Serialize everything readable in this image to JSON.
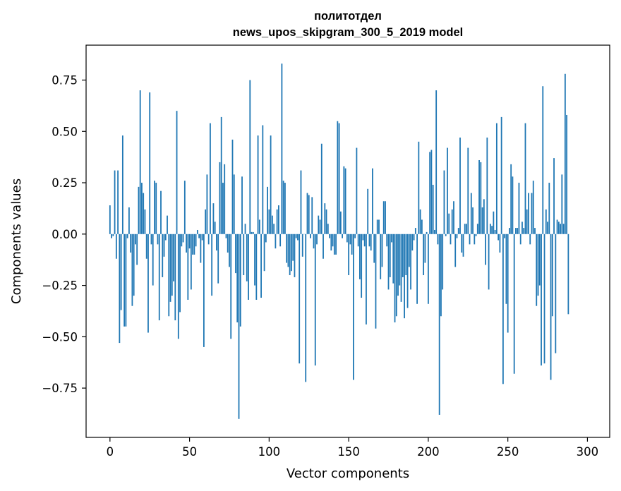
{
  "chart_data": {
    "type": "bar",
    "title": "политотдел",
    "subtitle": "news_upos_skipgram_300_5_2019 model",
    "xlabel": "Vector components",
    "ylabel": "Components values",
    "xlim": [
      -15,
      314
    ],
    "ylim": [
      -0.99,
      0.92
    ],
    "xticks": [
      0,
      50,
      100,
      150,
      200,
      250,
      300
    ],
    "yticks": [
      -0.75,
      -0.5,
      -0.25,
      0.0,
      0.25,
      0.5,
      0.75
    ],
    "ytick_labels": [
      "−0.75",
      "−0.50",
      "−0.25",
      "0.00",
      "0.25",
      "0.50",
      "0.75"
    ],
    "bar_color": "#1f77b4",
    "grid": false,
    "values": [
      0.14,
      -0.02,
      -0.01,
      0.31,
      -0.12,
      0.31,
      -0.53,
      -0.37,
      0.48,
      -0.45,
      -0.45,
      -0.02,
      0.13,
      -0.09,
      -0.35,
      -0.3,
      -0.05,
      -0.15,
      0.23,
      0.7,
      0.25,
      0.2,
      0.12,
      -0.12,
      -0.48,
      0.69,
      -0.05,
      -0.25,
      0.26,
      0.25,
      -0.05,
      -0.42,
      0.21,
      -0.21,
      -0.11,
      -0.03,
      0.09,
      -0.4,
      -0.33,
      -0.3,
      -0.23,
      -0.42,
      0.6,
      -0.51,
      -0.38,
      -0.06,
      -0.04,
      0.26,
      -0.09,
      -0.32,
      -0.07,
      -0.27,
      -0.1,
      -0.1,
      -0.06,
      0.02,
      -0.02,
      -0.14,
      -0.03,
      -0.55,
      0.12,
      0.29,
      -0.05,
      0.54,
      -0.3,
      0.15,
      0.06,
      -0.08,
      -0.24,
      0.35,
      0.57,
      0.25,
      0.34,
      -0.02,
      -0.09,
      -0.16,
      -0.51,
      0.46,
      0.29,
      -0.19,
      -0.43,
      -0.9,
      -0.45,
      0.28,
      -0.2,
      0.05,
      -0.23,
      -0.32,
      0.75,
      0.01,
      0.01,
      -0.25,
      -0.32,
      0.48,
      0.07,
      -0.31,
      0.53,
      -0.18,
      -0.04,
      0.23,
      0.12,
      0.48,
      0.09,
      0.05,
      -0.07,
      0.12,
      0.14,
      -0.06,
      0.83,
      0.26,
      0.25,
      -0.14,
      -0.16,
      -0.2,
      -0.18,
      -0.13,
      -0.21,
      -0.02,
      -0.03,
      -0.63,
      0.31,
      -0.11,
      0.0,
      -0.72,
      0.2,
      0.19,
      -0.02,
      0.18,
      -0.07,
      -0.64,
      -0.05,
      0.09,
      0.07,
      0.44,
      -0.12,
      0.15,
      0.12,
      0.05,
      -0.02,
      -0.08,
      -0.06,
      -0.1,
      -0.1,
      0.55,
      0.54,
      0.11,
      -0.02,
      0.33,
      0.32,
      -0.04,
      -0.2,
      -0.05,
      -0.1,
      -0.71,
      -0.02,
      0.42,
      -0.06,
      -0.22,
      -0.31,
      -0.03,
      -0.06,
      -0.44,
      0.22,
      -0.06,
      -0.08,
      0.32,
      -0.14,
      -0.46,
      0.07,
      0.07,
      -0.22,
      -0.16,
      0.16,
      0.16,
      -0.06,
      -0.27,
      -0.21,
      -0.04,
      -0.24,
      -0.43,
      -0.4,
      -0.3,
      -0.25,
      -0.33,
      -0.21,
      -0.41,
      -0.2,
      -0.36,
      -0.16,
      -0.27,
      -0.08,
      -0.03,
      0.03,
      -0.34,
      0.45,
      0.12,
      0.07,
      -0.2,
      -0.14,
      0.01,
      -0.34,
      0.4,
      0.41,
      0.24,
      0.02,
      0.7,
      -0.05,
      -0.88,
      -0.4,
      -0.27,
      0.31,
      -0.01,
      0.42,
      0.1,
      -0.05,
      0.12,
      0.16,
      -0.16,
      -0.02,
      0.03,
      0.47,
      -0.09,
      -0.11,
      0.05,
      0.05,
      0.42,
      -0.05,
      0.2,
      0.13,
      -0.05,
      -0.01,
      0.05,
      0.36,
      0.35,
      0.13,
      0.17,
      -0.15,
      0.47,
      -0.27,
      0.05,
      0.04,
      0.11,
      0.02,
      0.54,
      -0.03,
      -0.09,
      0.57,
      -0.73,
      -0.02,
      -0.34,
      -0.48,
      0.03,
      0.34,
      0.28,
      -0.68,
      0.03,
      0.03,
      0.25,
      -0.05,
      0.06,
      0.03,
      0.54,
      0.12,
      0.2,
      -0.05,
      0.2,
      0.26,
      0.03,
      -0.35,
      -0.3,
      -0.25,
      -0.64,
      0.72,
      -0.63,
      0.12,
      0.06,
      0.25,
      -0.71,
      -0.4,
      0.37,
      -0.58,
      0.07,
      0.06,
      0.05,
      0.29,
      0.05,
      0.78,
      0.58,
      -0.39
    ]
  }
}
